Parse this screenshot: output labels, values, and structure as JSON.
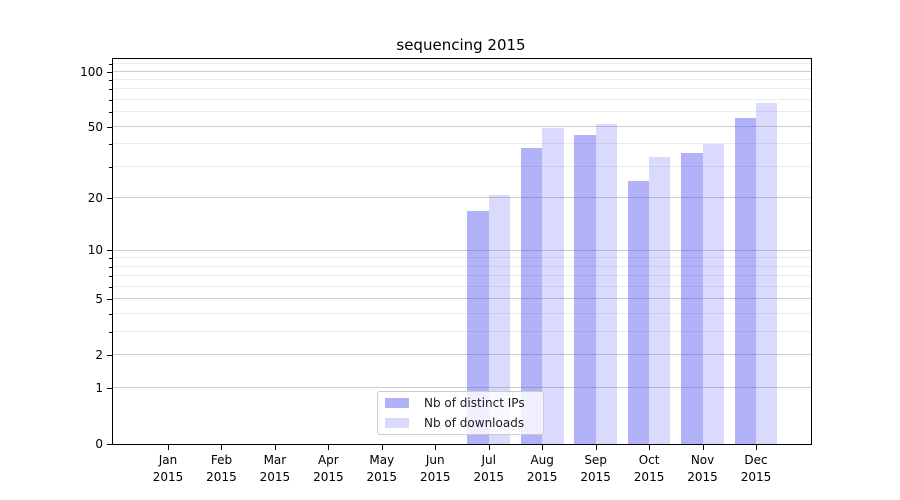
{
  "title": "sequencing 2015",
  "chart_data": {
    "type": "bar",
    "title": "sequencing 2015",
    "categories": [
      "Jan",
      "Feb",
      "Mar",
      "Apr",
      "May",
      "Jun",
      "Jul",
      "Aug",
      "Sep",
      "Oct",
      "Nov",
      "Dec"
    ],
    "x_year": "2015",
    "series": [
      {
        "key": "distinct-ips",
        "name": "Nb of distinct IPs",
        "color": "rgba(85,85,240,0.45)",
        "color_hex": "#b3b3f9",
        "values": [
          0,
          0,
          0,
          0,
          0,
          0,
          17,
          38,
          45,
          25,
          36,
          56
        ]
      },
      {
        "key": "downloads",
        "name": "Nb of downloads",
        "color": "rgba(85,85,240,0.22)",
        "color_hex": "#dcdcfb",
        "values": [
          0,
          0,
          0,
          0,
          0,
          0,
          21,
          49,
          52,
          34,
          40,
          67
        ]
      }
    ],
    "yscale": "log1p",
    "ylim": [
      0,
      117
    ],
    "yticks_major": [
      0,
      1,
      2,
      5,
      10,
      20,
      50,
      100
    ],
    "yticks_minor": [
      3,
      4,
      6,
      7,
      8,
      9,
      30,
      40,
      60,
      70,
      80,
      90,
      110
    ],
    "grid": true,
    "legend_position": "lower center",
    "xlabel": "",
    "ylabel": ""
  }
}
